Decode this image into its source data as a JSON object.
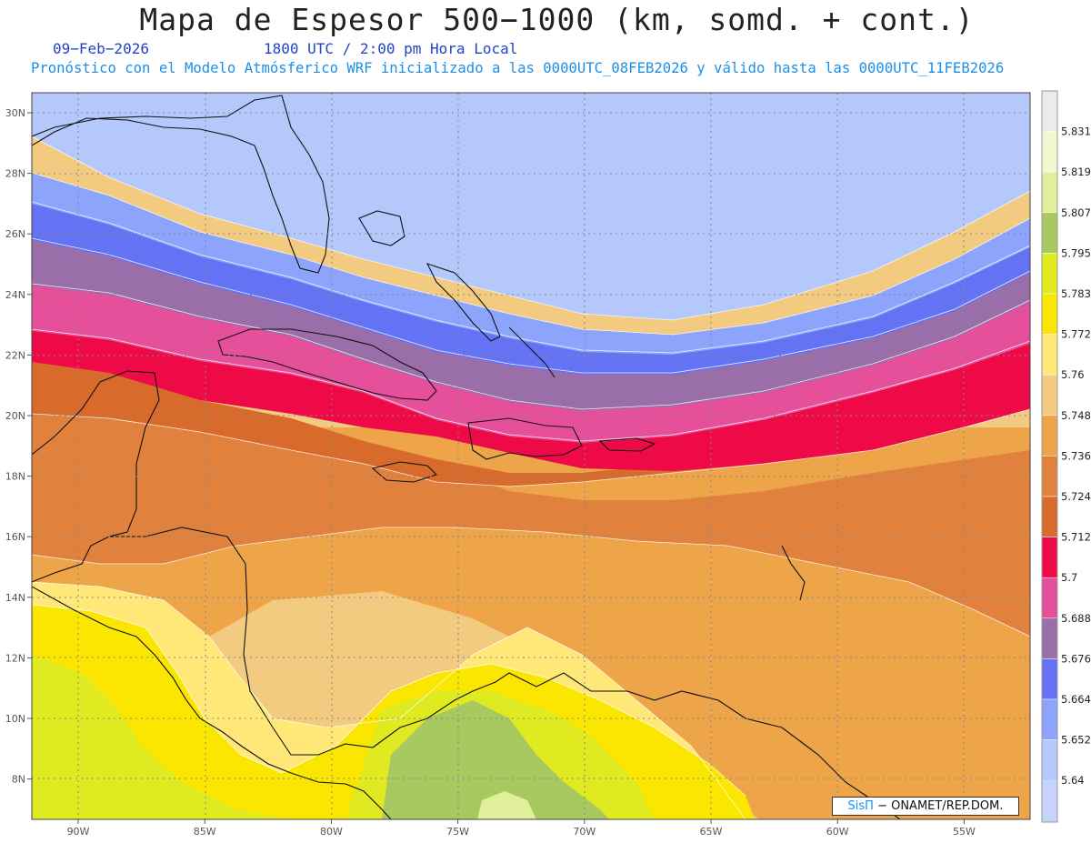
{
  "title": "Mapa de Espesor 500−1000 (km, somd. + cont.)",
  "date": "09−Feb−2026",
  "time": "1800 UTC / 2:00 pm Hora Local",
  "model_line": "Pronóstico con el Modelo Atmósferico WRF inicializado a las 0000UTC_08FEB2026 y válido hasta las  0000UTC_11FEB2026",
  "credit": {
    "brand": "SisΠ",
    "rest": "− ONAMET/REP.DOM."
  },
  "lat_ticks": [
    "30N",
    "28N",
    "26N",
    "24N",
    "22N",
    "20N",
    "18N",
    "16N",
    "14N",
    "12N",
    "10N",
    "8N"
  ],
  "lon_ticks": [
    "90W",
    "85W",
    "80W",
    "75W",
    "70W",
    "65W",
    "60W",
    "55W"
  ],
  "colorbar": {
    "labels": [
      "5.831",
      "5.819",
      "5.807",
      "5.795",
      "5.783",
      "5.772",
      "5.76",
      "5.748",
      "5.736",
      "5.724",
      "5.712",
      "5.7",
      "5.688",
      "5.676",
      "5.664",
      "5.652",
      "5.64"
    ],
    "colors": [
      "#ebebeb",
      "#f2f7d0",
      "#e0f09a",
      "#a8c860",
      "#e0ea20",
      "#fae600",
      "#ffe878",
      "#f2ca80",
      "#eea448",
      "#e0823e",
      "#d86a2c",
      "#ee0a46",
      "#e6509a",
      "#9a6ea8",
      "#6472f4",
      "#8ca4fc",
      "#b4c8fc"
    ],
    "bottom_color": "#c6d4fc"
  },
  "field_colors": {
    "c564": "#b4c8fc",
    "c565": "#8ca4fc",
    "c566": "#6472f4",
    "c567": "#9a6ea8",
    "c568": "#e6509a",
    "c570": "#ee0a46",
    "c571": "#d86a2c",
    "c572": "#e0823e",
    "c573": "#eea448",
    "c574": "#f2ca80",
    "c576": "#ffe878",
    "c577": "#fae600",
    "c578": "#e0ea20",
    "c579": "#a8c860",
    "c580": "#e0f09a"
  }
}
